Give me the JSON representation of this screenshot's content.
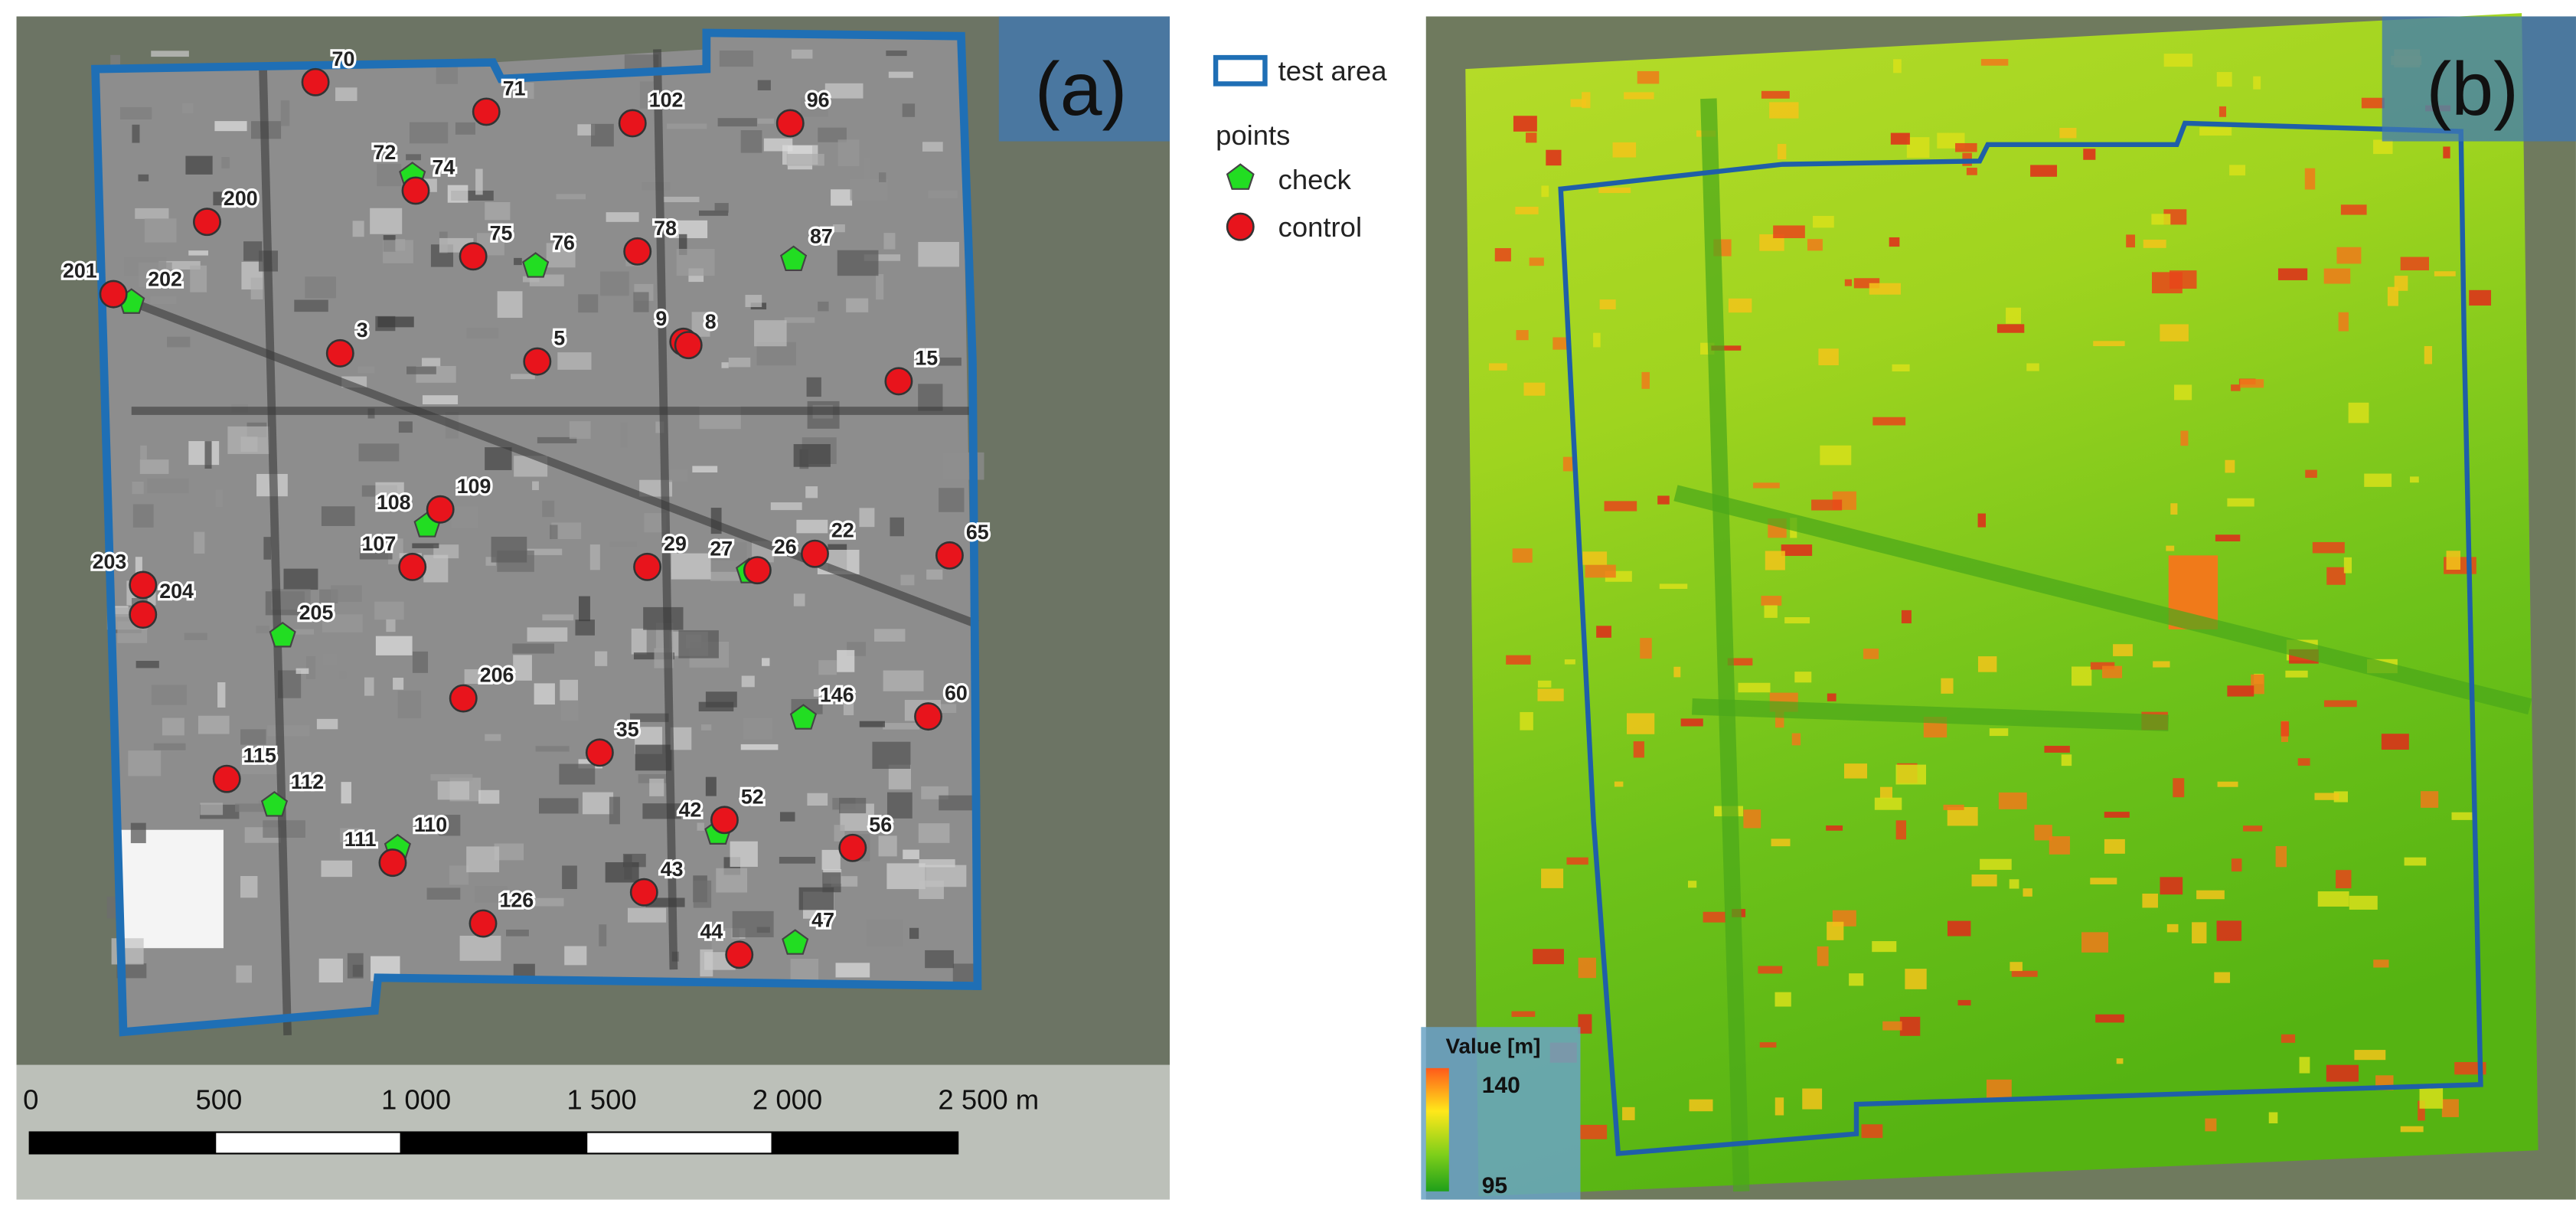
{
  "panel_a": {
    "label": "(a)",
    "control_points": [
      "70",
      "71",
      "102",
      "96",
      "74",
      "200",
      "75",
      "78",
      "201",
      "3",
      "5",
      "9",
      "8",
      "15",
      "109",
      "107",
      "29",
      "26",
      "22",
      "65",
      "203",
      "204",
      "206",
      "35",
      "60",
      "115",
      "111",
      "52",
      "56",
      "43",
      "126",
      "44"
    ],
    "check_points": [
      "72",
      "76",
      "87",
      "202",
      "108",
      "27",
      "205",
      "146",
      "112",
      "110",
      "42",
      "47"
    ],
    "scale_bar": [
      "0",
      "500",
      "1 000",
      "1 500",
      "2 000",
      "2 500 m"
    ]
  },
  "legend": {
    "boundary": "test area",
    "points_title": "points",
    "check": "check",
    "control": "control"
  },
  "panel_b": {
    "label": "(b)",
    "colorbar": {
      "title": "Value [m]",
      "max": 140,
      "min": 95
    }
  }
}
